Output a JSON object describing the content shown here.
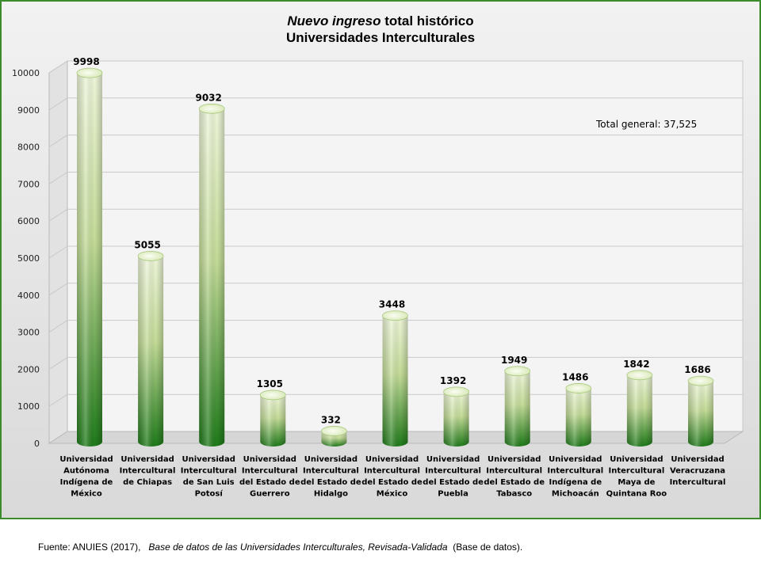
{
  "chart_data": {
    "type": "bar",
    "title_italic": "Nuevo ingreso",
    "title_rest": "total histórico",
    "subtitle": "Universidades Interculturales",
    "categories": [
      [
        "Universidad",
        "Autónoma",
        "Indígena de",
        "México"
      ],
      [
        "Universidad",
        "Intercultural",
        "de Chiapas"
      ],
      [
        "Universidad",
        "Intercultural",
        "de San Luis",
        "Potosí"
      ],
      [
        "Universidad",
        "Intercultural",
        "del Estado de",
        "Guerrero"
      ],
      [
        "Universidad",
        "Intercultural",
        "del Estado de",
        "Hidalgo"
      ],
      [
        "Universidad",
        "Intercultural",
        "del Estado de",
        "México"
      ],
      [
        "Universidad",
        "Intercultural",
        "del Estado de",
        "Puebla"
      ],
      [
        "Universidad",
        "Intercultural",
        "del Estado de",
        "Tabasco"
      ],
      [
        "Universidad",
        "Intercultural",
        "Indígena de",
        "Michoacán"
      ],
      [
        "Universidad",
        "Intercultural",
        "Maya de",
        "Quintana Roo"
      ],
      [
        "Universidad",
        "Veracruzana",
        "Intercultural"
      ]
    ],
    "values": [
      9998,
      5055,
      9032,
      1305,
      332,
      3448,
      1392,
      1949,
      1486,
      1842,
      1686
    ],
    "value_labels": [
      "9998",
      "5055",
      "9032",
      "1305",
      "332",
      "3448",
      "1392",
      "1949",
      "1486",
      "1842",
      "1686"
    ],
    "ylim": [
      0,
      10000
    ],
    "yticks": [
      0,
      1000,
      2000,
      3000,
      4000,
      5000,
      6000,
      7000,
      8000,
      9000,
      10000
    ],
    "ytick_labels": [
      "0",
      "1000",
      "2000",
      "3000",
      "4000",
      "5000",
      "6000",
      "7000",
      "8000",
      "9000",
      "10000"
    ],
    "grid": true,
    "annotation": "Total general: 37,525",
    "colors": {
      "bar_top": "#e8f2d0",
      "bar_bottom": "#1f7a1a",
      "frame": "#3d8a2b"
    }
  },
  "source": {
    "prefix": "Fuente: ANUIES (2017),",
    "italic": "Base de datos de las Universidades Interculturales, Revisada-Validada",
    "suffix": "(Base de datos)."
  }
}
